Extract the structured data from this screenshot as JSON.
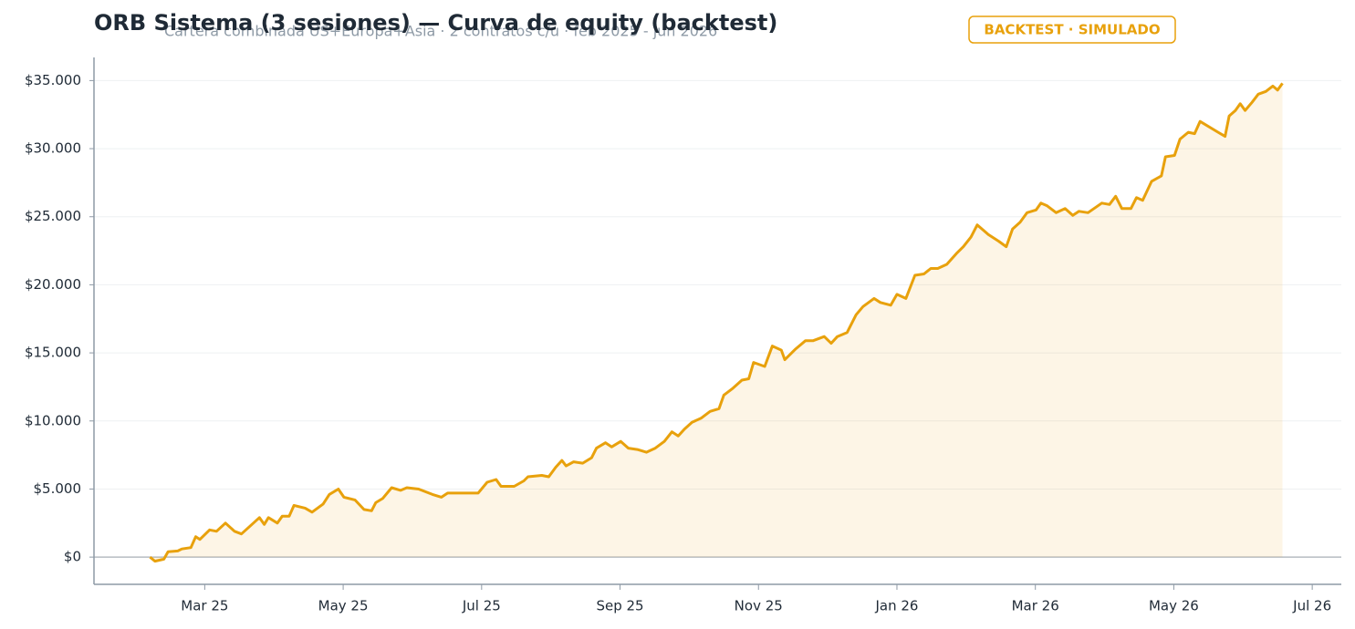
{
  "chart_data": {
    "type": "line",
    "title": "ORB Sistema (3 sesiones) — Curva de equity (backtest)",
    "subtitle": "Cartera combinada US+Europa+Asia · 2 contratos c/u · feb 2025 - jun 2026",
    "badge": "BACKTEST · SIMULADO",
    "color": "#e8a10c",
    "area": true,
    "grid": true,
    "x": [
      2.21,
      2.28,
      2.41,
      2.47,
      2.61,
      2.67,
      2.8,
      2.87,
      2.93,
      3.07,
      3.17,
      3.3,
      3.43,
      3.53,
      3.66,
      3.79,
      3.86,
      3.92,
      4.05,
      4.12,
      4.22,
      4.29,
      4.45,
      4.55,
      4.71,
      4.8,
      4.93,
      5.01,
      5.17,
      5.3,
      5.41,
      5.47,
      5.57,
      5.7,
      5.83,
      5.92,
      6.09,
      6.29,
      6.42,
      6.51,
      6.82,
      6.95,
      7.08,
      7.21,
      7.28,
      7.47,
      7.61,
      7.67,
      7.87,
      7.97,
      8.07,
      8.16,
      8.22,
      8.33,
      8.46,
      8.59,
      8.66,
      8.79,
      8.88,
      9.01,
      9.12,
      9.25,
      9.38,
      9.51,
      9.64,
      9.75,
      9.84,
      9.93,
      10.04,
      10.17,
      10.3,
      10.43,
      10.5,
      10.63,
      10.76,
      10.86,
      10.93,
      11.09,
      11.2,
      11.33,
      11.38,
      11.54,
      11.68,
      11.79,
      11.95,
      12.05,
      12.14,
      12.28,
      12.41,
      12.51,
      12.67,
      12.76,
      12.91,
      13.0,
      13.13,
      13.26,
      13.39,
      13.49,
      13.59,
      13.72,
      13.86,
      13.96,
      14.07,
      14.16,
      14.32,
      14.47,
      14.58,
      14.67,
      14.78,
      14.88,
      15.01,
      15.08,
      15.17,
      15.3,
      15.43,
      15.54,
      15.63,
      15.76,
      15.96,
      16.07,
      16.16,
      16.25,
      16.38,
      16.46,
      16.55,
      16.68,
      16.82,
      16.88,
      17.01,
      17.09,
      17.21,
      17.3,
      17.38,
      17.64,
      17.74,
      17.8,
      17.89,
      17.96,
      18.03,
      18.13,
      18.22,
      18.33,
      18.43,
      18.5,
      18.57
    ],
    "values": [
      0,
      -300,
      -150,
      400,
      450,
      600,
      700,
      1500,
      1300,
      2000,
      1900,
      2500,
      1900,
      1700,
      2300,
      2900,
      2400,
      2900,
      2500,
      3000,
      3000,
      3800,
      3600,
      3300,
      3900,
      4600,
      5000,
      4400,
      4200,
      3500,
      3400,
      4000,
      4300,
      5100,
      4900,
      5100,
      5000,
      4600,
      4400,
      4700,
      4700,
      4700,
      5500,
      5700,
      5200,
      5200,
      5600,
      5900,
      6000,
      5900,
      6600,
      7100,
      6700,
      7000,
      6900,
      7300,
      8000,
      8400,
      8100,
      8500,
      8000,
      7900,
      7700,
      8000,
      8500,
      9200,
      8900,
      9400,
      9900,
      10200,
      10700,
      10900,
      11900,
      12400,
      13000,
      13100,
      14300,
      14000,
      15500,
      15200,
      14500,
      15300,
      15900,
      15900,
      16200,
      15700,
      16200,
      16500,
      17800,
      18400,
      19000,
      18700,
      18500,
      19300,
      19000,
      20700,
      20800,
      21200,
      21200,
      21500,
      22300,
      22800,
      23500,
      24400,
      23700,
      23200,
      22800,
      24100,
      24600,
      25300,
      25500,
      26000,
      25800,
      25300,
      25600,
      25100,
      25400,
      25300,
      26000,
      25900,
      26500,
      25600,
      25600,
      26400,
      26200,
      27600,
      28000,
      29400,
      29500,
      30700,
      31200,
      31100,
      32000,
      31200,
      30900,
      32400,
      32800,
      33300,
      32800,
      33400,
      34000,
      34200,
      34600,
      34300,
      34800
    ],
    "xlim": [
      1.4,
      19.42
    ],
    "xticks": [
      {
        "value": 3,
        "label": "Mar 25"
      },
      {
        "value": 5,
        "label": "May 25"
      },
      {
        "value": 7,
        "label": "Jul 25"
      },
      {
        "value": 9,
        "label": "Sep 25"
      },
      {
        "value": 11,
        "label": "Nov 25"
      },
      {
        "value": 13,
        "label": "Jan 26"
      },
      {
        "value": 15,
        "label": "Mar 26"
      },
      {
        "value": 17,
        "label": "May 26"
      },
      {
        "value": 19,
        "label": "Jul 26"
      }
    ],
    "ylim": [
      -2000,
      36700
    ],
    "yticks": [
      {
        "value": 0,
        "label": "$0"
      },
      {
        "value": 5000,
        "label": "$5.000"
      },
      {
        "value": 10000,
        "label": "$10.000"
      },
      {
        "value": 15000,
        "label": "$15.000"
      },
      {
        "value": 20000,
        "label": "$20.000"
      },
      {
        "value": 25000,
        "label": "$25.000"
      },
      {
        "value": 30000,
        "label": "$30.000"
      },
      {
        "value": 35000,
        "label": "$35.000"
      }
    ]
  }
}
